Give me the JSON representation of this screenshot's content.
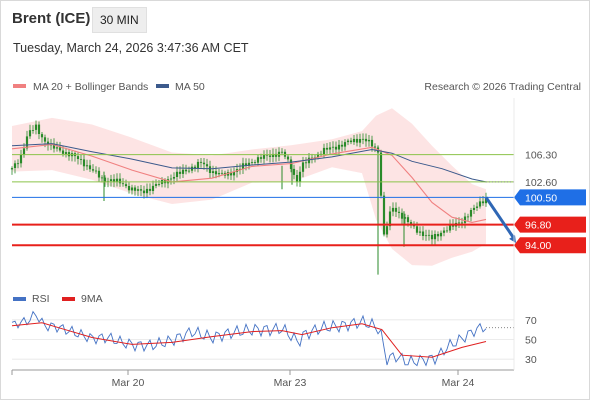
{
  "header": {
    "title": "Brent (ICE)",
    "timeframe": "30 MIN",
    "datetime": "Tuesday, March 24, 2026 3:47:36 AM CET"
  },
  "legend": {
    "ma20": "MA 20 + Bollinger Bands",
    "ma50": "MA 50",
    "research": "Research © 2026 Trading Central",
    "rsi": "RSI",
    "ma9": "9MA"
  },
  "colors": {
    "price_candle": "#2a8a2a",
    "ma20": "#f08080",
    "bollinger_fill": "#fde3e3",
    "ma50": "#3c5a8c",
    "resistance": "#8bc34a",
    "current": "#1f6fe6",
    "support": "#e8201b",
    "arrow": "#2f67b5",
    "rsi": "#4472c4",
    "rsi_ma": "#e02020"
  },
  "chart_data": [
    {
      "type": "candlestick",
      "instrument": "Brent (ICE)",
      "x_ticks": [
        "Mar 20",
        "Mar 23",
        "Mar 24"
      ],
      "ylim": [
        89,
        114
      ],
      "price_path": [
        [
          0,
          104.3
        ],
        [
          4,
          105.8
        ],
        [
          8,
          109.2
        ],
        [
          12,
          110.0
        ],
        [
          16,
          108.3
        ],
        [
          20,
          107.3
        ],
        [
          25,
          106.8
        ],
        [
          30,
          106.2
        ],
        [
          35,
          105.4
        ],
        [
          40,
          104.2
        ],
        [
          45,
          103.0
        ],
        [
          50,
          102.8
        ],
        [
          55,
          102.4
        ],
        [
          60,
          101.6
        ],
        [
          65,
          101.2
        ],
        [
          70,
          101.9
        ],
        [
          75,
          102.5
        ],
        [
          80,
          103.3
        ],
        [
          85,
          103.9
        ],
        [
          90,
          104.6
        ],
        [
          95,
          105.2
        ],
        [
          100,
          104.0
        ],
        [
          105,
          103.5
        ],
        [
          110,
          103.9
        ],
        [
          115,
          104.6
        ],
        [
          120,
          105.4
        ],
        [
          125,
          105.9
        ],
        [
          130,
          106.3
        ],
        [
          135,
          106.6
        ],
        [
          140,
          104.5
        ],
        [
          142,
          102.5
        ],
        [
          145,
          104.8
        ],
        [
          150,
          105.9
        ],
        [
          155,
          106.7
        ],
        [
          160,
          107.3
        ],
        [
          165,
          107.6
        ],
        [
          170,
          108.2
        ],
        [
          175,
          108.5
        ],
        [
          180,
          107.6
        ],
        [
          183,
          106.8
        ],
        [
          186,
          95.2
        ],
        [
          190,
          99.2
        ],
        [
          195,
          98.0
        ],
        [
          200,
          96.5
        ],
        [
          205,
          95.6
        ],
        [
          210,
          94.9
        ],
        [
          215,
          95.9
        ],
        [
          220,
          96.5
        ],
        [
          225,
          97.4
        ],
        [
          230,
          98.6
        ],
        [
          235,
          100.1
        ],
        [
          237,
          100.3
        ]
      ],
      "ma20_path": [
        [
          0,
          107.1
        ],
        [
          20,
          107.7
        ],
        [
          40,
          106.1
        ],
        [
          60,
          104.2
        ],
        [
          80,
          102.6
        ],
        [
          100,
          103.1
        ],
        [
          120,
          104.7
        ],
        [
          140,
          105.1
        ],
        [
          160,
          106.4
        ],
        [
          180,
          107.3
        ],
        [
          190,
          106.2
        ],
        [
          200,
          103.2
        ],
        [
          210,
          99.8
        ],
        [
          220,
          97.8
        ],
        [
          230,
          97.1
        ],
        [
          237,
          97.5
        ]
      ],
      "ma50_path": [
        [
          0,
          107.5
        ],
        [
          20,
          107.8
        ],
        [
          40,
          106.7
        ],
        [
          60,
          105.7
        ],
        [
          80,
          104.5
        ],
        [
          100,
          104.4
        ],
        [
          120,
          104.9
        ],
        [
          140,
          105.3
        ],
        [
          160,
          106.0
        ],
        [
          180,
          107.0
        ],
        [
          190,
          106.5
        ],
        [
          200,
          105.4
        ],
        [
          215,
          104.4
        ],
        [
          230,
          103.0
        ],
        [
          237,
          102.6
        ]
      ],
      "bollinger_upper": [
        [
          0,
          110.2
        ],
        [
          20,
          111.3
        ],
        [
          40,
          110.4
        ],
        [
          60,
          108.6
        ],
        [
          80,
          106.6
        ],
        [
          100,
          106.2
        ],
        [
          120,
          107.0
        ],
        [
          140,
          107.6
        ],
        [
          160,
          108.4
        ],
        [
          175,
          109.5
        ],
        [
          182,
          111.6
        ],
        [
          190,
          112.6
        ],
        [
          200,
          110.5
        ],
        [
          210,
          107.5
        ],
        [
          220,
          104.8
        ],
        [
          230,
          102.3
        ],
        [
          237,
          101.6
        ]
      ],
      "bollinger_lower": [
        [
          0,
          104.0
        ],
        [
          20,
          104.2
        ],
        [
          40,
          102.9
        ],
        [
          60,
          101.0
        ],
        [
          80,
          99.6
        ],
        [
          100,
          100.2
        ],
        [
          120,
          102.5
        ],
        [
          140,
          102.6
        ],
        [
          160,
          104.6
        ],
        [
          175,
          103.8
        ],
        [
          182,
          97.5
        ],
        [
          190,
          93.5
        ],
        [
          200,
          91.3
        ],
        [
          210,
          91.2
        ],
        [
          220,
          92.3
        ],
        [
          230,
          93.1
        ],
        [
          237,
          94.2
        ]
      ],
      "levels": [
        {
          "value": 106.3,
          "label": "106.30",
          "kind": "resistance"
        },
        {
          "value": 102.6,
          "label": "102.60",
          "kind": "resistance"
        },
        {
          "value": 100.5,
          "label": "100.50",
          "kind": "current"
        },
        {
          "value": 96.8,
          "label": "96.80",
          "kind": "support"
        },
        {
          "value": 94.0,
          "label": "94.00",
          "kind": "support"
        }
      ],
      "projection_arrow": {
        "from": [
          237,
          100.5
        ],
        "to": [
          252,
          94.3
        ]
      },
      "legend_placement": "top-left"
    },
    {
      "type": "line",
      "indicator": "RSI",
      "ylim": [
        20,
        80
      ],
      "y_ticks": [
        70,
        50,
        30
      ],
      "rsi_path": [
        [
          0,
          65
        ],
        [
          8,
          69
        ],
        [
          12,
          76
        ],
        [
          16,
          64
        ],
        [
          22,
          63
        ],
        [
          30,
          58
        ],
        [
          40,
          51
        ],
        [
          48,
          52
        ],
        [
          55,
          47
        ],
        [
          62,
          44
        ],
        [
          70,
          44
        ],
        [
          80,
          49
        ],
        [
          90,
          58
        ],
        [
          100,
          52
        ],
        [
          110,
          57
        ],
        [
          120,
          60
        ],
        [
          130,
          60
        ],
        [
          135,
          61
        ],
        [
          140,
          53
        ],
        [
          143,
          47
        ],
        [
          146,
          55
        ],
        [
          155,
          62
        ],
        [
          165,
          64
        ],
        [
          175,
          68
        ],
        [
          180,
          65
        ],
        [
          184,
          60
        ],
        [
          187,
          30
        ],
        [
          192,
          33
        ],
        [
          198,
          27
        ],
        [
          205,
          29
        ],
        [
          212,
          31
        ],
        [
          218,
          43
        ],
        [
          225,
          51
        ],
        [
          232,
          60
        ],
        [
          236,
          63
        ],
        [
          237,
          62
        ],
        [
          252,
          62
        ]
      ],
      "ma_path": [
        [
          0,
          64
        ],
        [
          15,
          67
        ],
        [
          25,
          61
        ],
        [
          40,
          52
        ],
        [
          60,
          45
        ],
        [
          80,
          47
        ],
        [
          100,
          53
        ],
        [
          120,
          58
        ],
        [
          135,
          59
        ],
        [
          145,
          55
        ],
        [
          160,
          62
        ],
        [
          175,
          66
        ],
        [
          185,
          60
        ],
        [
          195,
          34
        ],
        [
          210,
          32
        ],
        [
          225,
          42
        ],
        [
          237,
          48
        ]
      ]
    }
  ]
}
